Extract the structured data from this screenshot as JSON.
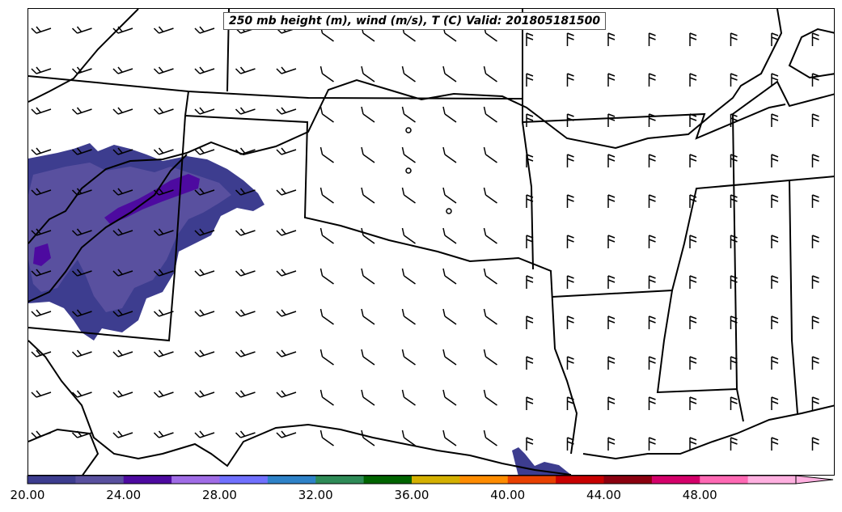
{
  "title": "250 mb height (m), wind (m/s), T (C) Valid: 201805181500",
  "colorbar": {
    "min": 20,
    "max": 52,
    "step": 2,
    "colors": [
      "#3d3d8f",
      "#59509f",
      "#4d0aa0",
      "#a06ce6",
      "#7070ff",
      "#2e82c8",
      "#2e8b57",
      "#006400",
      "#d4b000",
      "#ff8c00",
      "#e84000",
      "#c80000",
      "#8b0010",
      "#d4006a",
      "#ff69b4",
      "#ffb0e0"
    ],
    "extend": "max",
    "tick_labels": [
      "20.00",
      "24.00",
      "28.00",
      "32.00",
      "36.00",
      "40.00",
      "44.00",
      "48.00"
    ]
  },
  "icons": {
    "barbs": "wind-barb-icon",
    "calm": "calm-wind-circle-icon"
  }
}
